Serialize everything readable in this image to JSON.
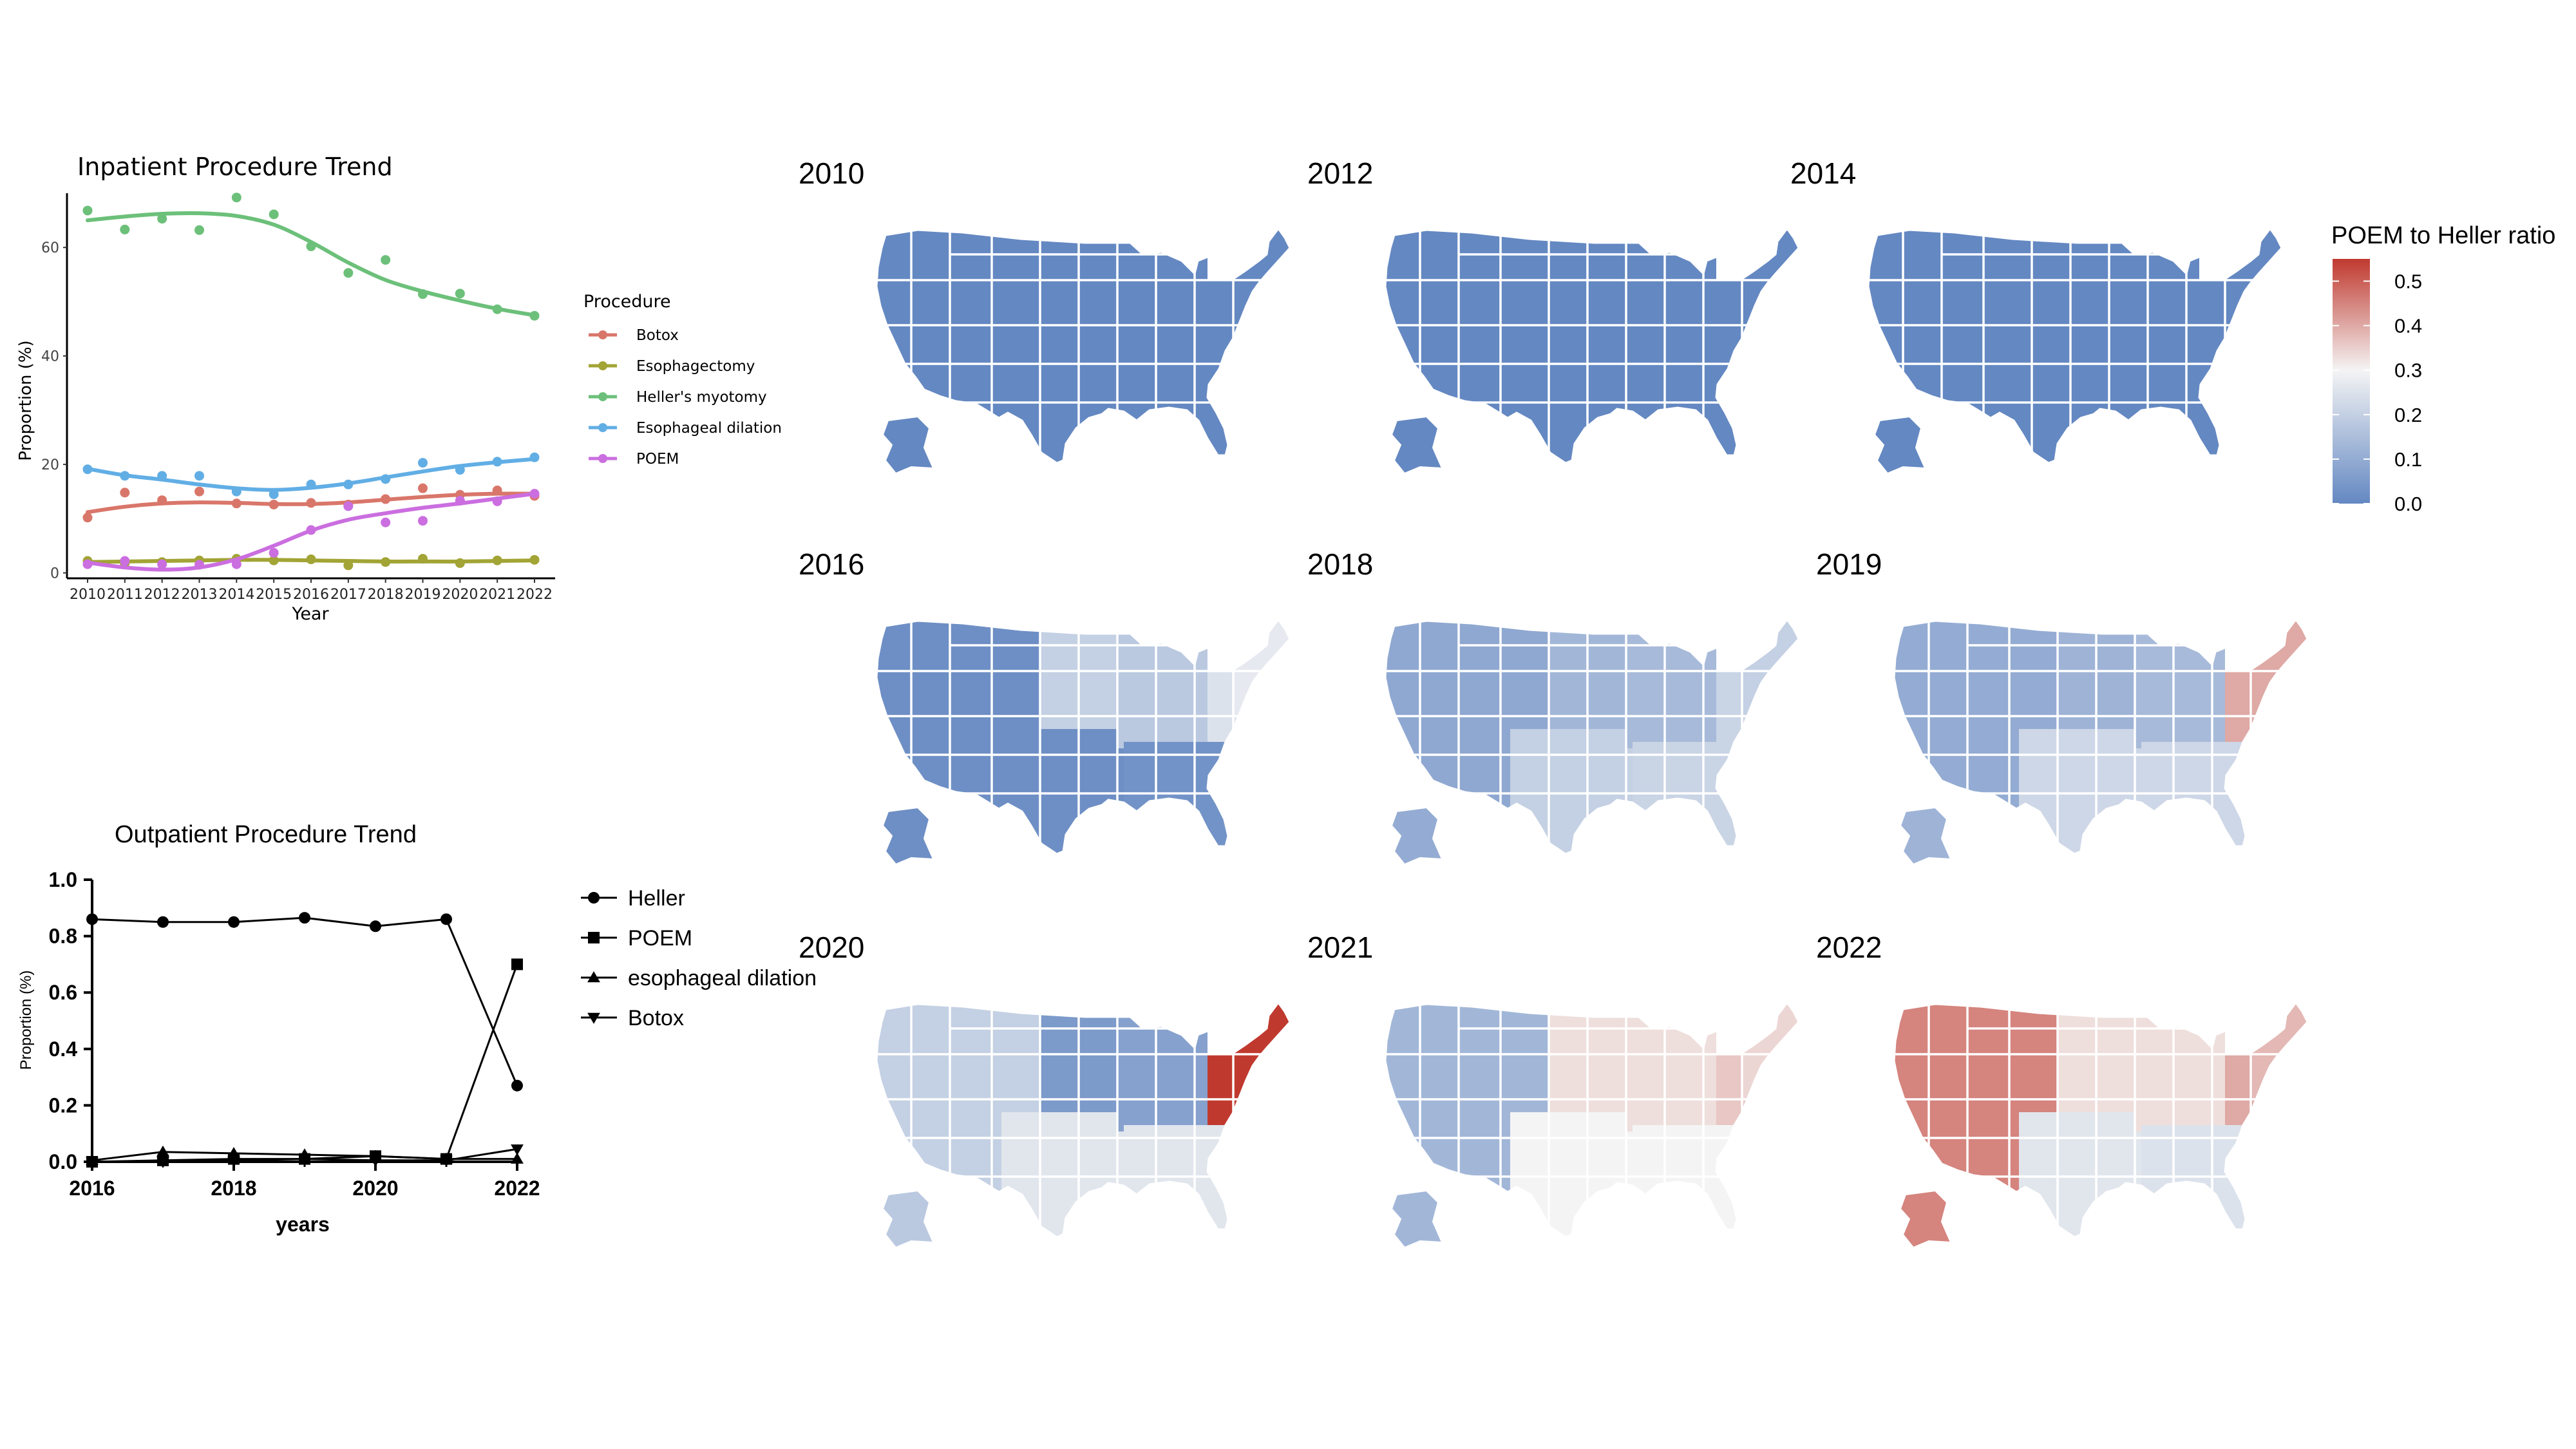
{
  "colors": {
    "botox": "#d9766a",
    "esophagectomy": "#a2a435",
    "heller": "#6cc07a",
    "dilation": "#61aee5",
    "poem": "#cb6ee0",
    "map_low": "#6488c2",
    "map_mid": "#f4f4f4",
    "map_high": "#c0392f",
    "state_border": "#ffffff"
  },
  "chart_data": [
    {
      "type": "line",
      "title": "Inpatient Procedure Trend",
      "xlabel": "Year",
      "ylabel": "Proportion (%)",
      "xlim": [
        2010,
        2022
      ],
      "ylim": [
        -1,
        70
      ],
      "yticks": [
        "0",
        "20",
        "40",
        "60"
      ],
      "xticks": [
        "2010",
        "2011",
        "2012",
        "2013",
        "2014",
        "2015",
        "2016",
        "2017",
        "2018",
        "2019",
        "2020",
        "2021",
        "2022"
      ],
      "x": [
        2010,
        2011,
        2012,
        2013,
        2014,
        2015,
        2016,
        2017,
        2018,
        2019,
        2020,
        2021,
        2022
      ],
      "legend_title": "Procedure",
      "legend_position": "right",
      "grid": false,
      "series": [
        {
          "name": "Botox",
          "color_key": "botox",
          "points": [
            10.2,
            14.8,
            13.4,
            15.0,
            12.8,
            12.6,
            12.9,
            12.6,
            13.6,
            15.6,
            14.4,
            15.2,
            14.2
          ],
          "smooth": [
            11.2,
            12.2,
            12.8,
            13.0,
            12.9,
            12.7,
            12.7,
            13.0,
            13.5,
            14.0,
            14.4,
            14.6,
            14.6
          ]
        },
        {
          "name": "Esophagectomy",
          "color_key": "esophagectomy",
          "points": [
            2.2,
            1.8,
            2.0,
            2.3,
            2.6,
            2.3,
            2.5,
            1.4,
            2.0,
            2.6,
            1.8,
            2.3,
            2.4
          ],
          "smooth": [
            2.0,
            2.1,
            2.2,
            2.3,
            2.4,
            2.4,
            2.3,
            2.2,
            2.1,
            2.1,
            2.1,
            2.2,
            2.3
          ]
        },
        {
          "name": "Heller's myotomy",
          "color_key": "heller",
          "points": [
            66.8,
            63.3,
            65.3,
            63.2,
            69.2,
            66.1,
            60.2,
            55.3,
            57.7,
            51.4,
            51.5,
            48.6,
            47.4
          ],
          "smooth": [
            65.0,
            65.7,
            66.2,
            66.3,
            65.8,
            64.2,
            61.0,
            57.2,
            54.0,
            51.9,
            50.2,
            48.7,
            47.5
          ]
        },
        {
          "name": "Esophageal dilation",
          "color_key": "dilation",
          "points": [
            19.1,
            17.9,
            17.9,
            17.9,
            15.0,
            14.5,
            16.3,
            16.3,
            17.3,
            20.3,
            19.0,
            20.5,
            21.3
          ],
          "smooth": [
            19.2,
            18.0,
            17.2,
            16.3,
            15.6,
            15.3,
            15.7,
            16.5,
            17.6,
            18.7,
            19.7,
            20.4,
            21.0
          ]
        },
        {
          "name": "POEM",
          "color_key": "poem",
          "points": [
            1.6,
            2.2,
            1.6,
            1.5,
            1.6,
            3.7,
            7.9,
            12.3,
            9.3,
            9.6,
            13.3,
            13.2,
            14.6
          ],
          "smooth": [
            1.9,
            1.0,
            0.6,
            1.0,
            2.5,
            5.0,
            7.8,
            9.8,
            11.0,
            12.0,
            12.8,
            13.7,
            14.6
          ]
        }
      ]
    },
    {
      "type": "line",
      "title": "Outpatient Procedure Trend",
      "xlabel": "years",
      "ylabel": "Proportion (%)",
      "xlim": [
        2016,
        2022
      ],
      "ylim": [
        0,
        1.0
      ],
      "xticks": [
        "2016",
        "2018",
        "2020",
        "2022"
      ],
      "yticks": [
        "0.0",
        "0.2",
        "0.4",
        "0.6",
        "0.8",
        "1.0"
      ],
      "x": [
        2016,
        2017,
        2018,
        2019,
        2020,
        2021,
        2022
      ],
      "legend_position": "right",
      "grid": false,
      "series": [
        {
          "name": "Heller",
          "marker": "circle",
          "values": [
            0.86,
            0.85,
            0.85,
            0.865,
            0.835,
            0.86,
            0.27
          ]
        },
        {
          "name": "POEM",
          "marker": "square",
          "values": [
            0.0,
            0.005,
            0.01,
            0.01,
            0.02,
            0.01,
            0.7
          ]
        },
        {
          "name": "esophageal dilation",
          "marker": "triangle-up",
          "values": [
            0.005,
            0.035,
            0.03,
            0.025,
            0.02,
            0.01,
            0.01
          ]
        },
        {
          "name": "Botox",
          "marker": "triangle-down",
          "values": [
            0.0,
            0.0,
            0.005,
            0.01,
            0.005,
            0.005,
            0.045
          ]
        }
      ]
    },
    {
      "type": "choropleth",
      "legend_title": "POEM to Heller ratio",
      "legend_position": "right",
      "scale": {
        "min": 0.0,
        "max": 0.55,
        "midpoint": 0.3,
        "ticks": [
          "0.0",
          "0.1",
          "0.2",
          "0.3",
          "0.4",
          "0.5"
        ]
      },
      "regions": [
        "west",
        "mountain",
        "north_central",
        "south_central",
        "great_lakes",
        "southeast",
        "mid_atlantic",
        "northeast",
        "alaska"
      ],
      "maps": [
        {
          "year": "2010",
          "values": {
            "west": 0.0,
            "mountain": 0.0,
            "north_central": 0.0,
            "south_central": 0.0,
            "great_lakes": 0.0,
            "southeast": 0.0,
            "mid_atlantic": 0.0,
            "northeast": 0.0,
            "alaska": 0.0
          }
        },
        {
          "year": "2012",
          "values": {
            "west": 0.0,
            "mountain": 0.0,
            "north_central": 0.0,
            "south_central": 0.0,
            "great_lakes": 0.0,
            "southeast": 0.0,
            "mid_atlantic": 0.0,
            "northeast": 0.0,
            "alaska": 0.0
          }
        },
        {
          "year": "2014",
          "values": {
            "west": 0.0,
            "mountain": 0.0,
            "north_central": 0.0,
            "south_central": 0.0,
            "great_lakes": 0.0,
            "southeast": 0.0,
            "mid_atlantic": 0.0,
            "northeast": 0.0,
            "alaska": 0.0
          }
        },
        {
          "year": "2016",
          "values": {
            "west": 0.02,
            "mountain": 0.02,
            "north_central": 0.2,
            "south_central": 0.02,
            "great_lakes": 0.18,
            "southeast": 0.03,
            "mid_atlantic": 0.25,
            "northeast": 0.27,
            "alaska": 0.02
          }
        },
        {
          "year": "2018",
          "values": {
            "west": 0.09,
            "mountain": 0.09,
            "north_central": 0.13,
            "south_central": 0.2,
            "great_lakes": 0.14,
            "southeast": 0.21,
            "mid_atlantic": 0.21,
            "northeast": 0.2,
            "alaska": 0.1
          }
        },
        {
          "year": "2019",
          "values": {
            "west": 0.1,
            "mountain": 0.1,
            "north_central": 0.12,
            "south_central": 0.22,
            "great_lakes": 0.14,
            "southeast": 0.22,
            "mid_atlantic": 0.4,
            "northeast": 0.4,
            "alaska": 0.12
          }
        },
        {
          "year": "2020",
          "values": {
            "west": 0.2,
            "mountain": 0.2,
            "north_central": 0.05,
            "south_central": 0.26,
            "great_lakes": 0.07,
            "southeast": 0.26,
            "mid_atlantic": 0.55,
            "northeast": 0.55,
            "alaska": 0.18
          }
        },
        {
          "year": "2021",
          "values": {
            "west": 0.13,
            "mountain": 0.13,
            "north_central": 0.33,
            "south_central": 0.3,
            "great_lakes": 0.33,
            "southeast": 0.3,
            "mid_atlantic": 0.36,
            "northeast": 0.34,
            "alaska": 0.13
          }
        },
        {
          "year": "2022",
          "values": {
            "west": 0.45,
            "mountain": 0.45,
            "north_central": 0.33,
            "south_central": 0.26,
            "great_lakes": 0.33,
            "southeast": 0.25,
            "mid_atlantic": 0.4,
            "northeast": 0.38,
            "alaska": 0.45
          }
        }
      ]
    }
  ]
}
